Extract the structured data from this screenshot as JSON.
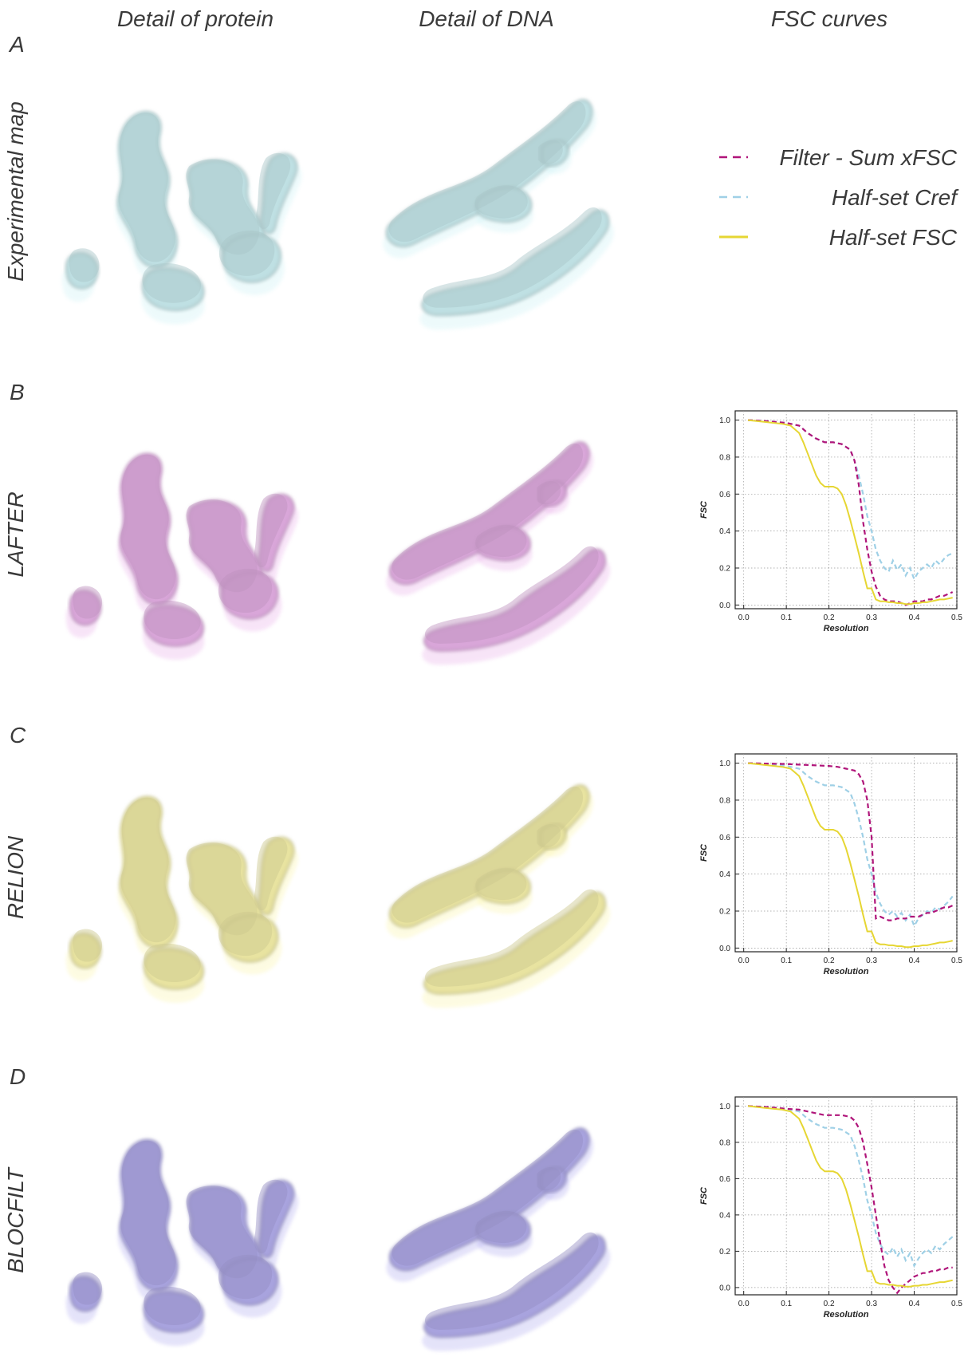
{
  "columns": [
    "Detail of protein",
    "Detail of DNA",
    "FSC curves"
  ],
  "panels": [
    {
      "letter": "A",
      "label": "Experimental map"
    },
    {
      "letter": "B",
      "label": "LAFTER"
    },
    {
      "letter": "C",
      "label": "RELION"
    },
    {
      "letter": "D",
      "label": "BLOCFILT"
    }
  ],
  "map_colors": {
    "experimental": "#bfe0e3",
    "lafter": "#d9a6d9",
    "relion": "#e8e3a0",
    "blocfilt": "#a8a3de"
  },
  "legend": [
    {
      "label": "Filter - Sum xFSC",
      "color": "#b0157a",
      "style": "dashed"
    },
    {
      "label": "Half-set Cref",
      "color": "#9fd0e6",
      "style": "dashed"
    },
    {
      "label": "Half-set FSC",
      "color": "#e6d633",
      "style": "solid"
    }
  ],
  "chart_data": [
    {
      "type": "line",
      "panel": "B",
      "xlabel": "Resolution",
      "ylabel": "FSC",
      "xlim": [
        -0.02,
        0.5
      ],
      "ylim": [
        -0.02,
        1.05
      ],
      "xticks": [
        "0.0",
        "0.1",
        "0.2",
        "0.3",
        "0.4",
        "0.5"
      ],
      "yticks": [
        "0.0",
        "0.2",
        "0.4",
        "0.6",
        "0.8",
        "1.0"
      ],
      "grid": true,
      "series": [
        {
          "color": "#9fd0e6",
          "style": "dashed",
          "x": [
            0.01,
            0.05,
            0.1,
            0.13,
            0.15,
            0.17,
            0.19,
            0.21,
            0.23,
            0.25,
            0.26,
            0.27,
            0.28,
            0.29,
            0.3,
            0.31,
            0.32,
            0.33,
            0.34,
            0.35,
            0.36,
            0.37,
            0.38,
            0.39,
            0.4,
            0.41,
            0.42,
            0.43,
            0.44,
            0.45,
            0.46,
            0.47,
            0.48,
            0.49
          ],
          "y": [
            1.0,
            0.995,
            0.985,
            0.97,
            0.93,
            0.9,
            0.88,
            0.88,
            0.87,
            0.84,
            0.78,
            0.7,
            0.6,
            0.48,
            0.4,
            0.3,
            0.24,
            0.2,
            0.18,
            0.24,
            0.19,
            0.22,
            0.16,
            0.2,
            0.14,
            0.18,
            0.2,
            0.22,
            0.2,
            0.24,
            0.22,
            0.25,
            0.27,
            0.28
          ]
        },
        {
          "color": "#b0157a",
          "style": "dashed",
          "x": [
            0.01,
            0.05,
            0.1,
            0.13,
            0.15,
            0.17,
            0.19,
            0.21,
            0.23,
            0.25,
            0.26,
            0.27,
            0.28,
            0.29,
            0.3,
            0.31,
            0.32,
            0.33,
            0.34,
            0.35,
            0.36,
            0.37,
            0.38,
            0.39,
            0.4,
            0.41,
            0.42,
            0.43,
            0.44,
            0.45,
            0.46,
            0.47,
            0.48,
            0.49
          ],
          "y": [
            1.0,
            0.995,
            0.985,
            0.97,
            0.93,
            0.9,
            0.88,
            0.88,
            0.87,
            0.84,
            0.78,
            0.65,
            0.45,
            0.3,
            0.18,
            0.1,
            0.05,
            0.03,
            0.02,
            0.02,
            0.02,
            0.01,
            0.0,
            0.01,
            0.02,
            0.02,
            0.02,
            0.03,
            0.03,
            0.04,
            0.05,
            0.05,
            0.06,
            0.07
          ]
        },
        {
          "color": "#e6d633",
          "style": "solid",
          "x": [
            0.01,
            0.05,
            0.09,
            0.11,
            0.13,
            0.14,
            0.15,
            0.16,
            0.17,
            0.18,
            0.19,
            0.21,
            0.22,
            0.23,
            0.24,
            0.25,
            0.26,
            0.27,
            0.28,
            0.29,
            0.3,
            0.31,
            0.32,
            0.33,
            0.34,
            0.35,
            0.36,
            0.37,
            0.38,
            0.39,
            0.4,
            0.41,
            0.42,
            0.43,
            0.44,
            0.45,
            0.46,
            0.47,
            0.48,
            0.49
          ],
          "y": [
            1.0,
            0.99,
            0.98,
            0.97,
            0.93,
            0.88,
            0.82,
            0.76,
            0.7,
            0.66,
            0.64,
            0.64,
            0.63,
            0.6,
            0.54,
            0.46,
            0.37,
            0.28,
            0.18,
            0.09,
            0.09,
            0.03,
            0.02,
            0.02,
            0.015,
            0.015,
            0.01,
            0.01,
            0.005,
            0.005,
            0.01,
            0.01,
            0.015,
            0.015,
            0.02,
            0.025,
            0.03,
            0.03,
            0.035,
            0.04
          ]
        }
      ]
    },
    {
      "type": "line",
      "panel": "C",
      "xlabel": "Resolution",
      "ylabel": "FSC",
      "xlim": [
        -0.02,
        0.5
      ],
      "ylim": [
        -0.02,
        1.05
      ],
      "xticks": [
        "0.0",
        "0.1",
        "0.2",
        "0.3",
        "0.4",
        "0.5"
      ],
      "yticks": [
        "0.0",
        "0.2",
        "0.4",
        "0.6",
        "0.8",
        "1.0"
      ],
      "grid": true,
      "series": [
        {
          "color": "#9fd0e6",
          "style": "dashed",
          "x": [
            0.01,
            0.05,
            0.1,
            0.13,
            0.15,
            0.17,
            0.19,
            0.21,
            0.23,
            0.25,
            0.26,
            0.27,
            0.28,
            0.29,
            0.3,
            0.31,
            0.32,
            0.33,
            0.34,
            0.35,
            0.36,
            0.37,
            0.38,
            0.39,
            0.4,
            0.41,
            0.42,
            0.43,
            0.44,
            0.45,
            0.46,
            0.47,
            0.48,
            0.49
          ],
          "y": [
            1.0,
            0.995,
            0.985,
            0.97,
            0.93,
            0.9,
            0.88,
            0.88,
            0.87,
            0.84,
            0.78,
            0.7,
            0.6,
            0.48,
            0.4,
            0.3,
            0.24,
            0.2,
            0.18,
            0.2,
            0.17,
            0.19,
            0.15,
            0.18,
            0.12,
            0.16,
            0.18,
            0.2,
            0.19,
            0.22,
            0.21,
            0.23,
            0.25,
            0.28
          ]
        },
        {
          "color": "#b0157a",
          "style": "dashed",
          "x": [
            0.01,
            0.1,
            0.15,
            0.2,
            0.22,
            0.24,
            0.26,
            0.27,
            0.28,
            0.29,
            0.3,
            0.31,
            0.32,
            0.33,
            0.34,
            0.35,
            0.36,
            0.37,
            0.38,
            0.39,
            0.4,
            0.41,
            0.42,
            0.43,
            0.44,
            0.45,
            0.46,
            0.47,
            0.48,
            0.49
          ],
          "y": [
            1.0,
            0.995,
            0.99,
            0.985,
            0.98,
            0.97,
            0.96,
            0.94,
            0.9,
            0.8,
            0.6,
            0.16,
            0.17,
            0.16,
            0.15,
            0.15,
            0.16,
            0.16,
            0.16,
            0.17,
            0.17,
            0.17,
            0.18,
            0.19,
            0.19,
            0.2,
            0.21,
            0.22,
            0.22,
            0.23
          ]
        },
        {
          "color": "#e6d633",
          "style": "solid",
          "x": [
            0.01,
            0.05,
            0.09,
            0.11,
            0.13,
            0.14,
            0.15,
            0.16,
            0.17,
            0.18,
            0.19,
            0.21,
            0.22,
            0.23,
            0.24,
            0.25,
            0.26,
            0.27,
            0.28,
            0.29,
            0.3,
            0.31,
            0.32,
            0.33,
            0.34,
            0.35,
            0.36,
            0.37,
            0.38,
            0.39,
            0.4,
            0.41,
            0.42,
            0.43,
            0.44,
            0.45,
            0.46,
            0.47,
            0.48,
            0.49
          ],
          "y": [
            1.0,
            0.99,
            0.98,
            0.97,
            0.93,
            0.88,
            0.82,
            0.76,
            0.7,
            0.66,
            0.64,
            0.64,
            0.63,
            0.6,
            0.54,
            0.46,
            0.37,
            0.28,
            0.18,
            0.09,
            0.09,
            0.03,
            0.02,
            0.02,
            0.015,
            0.015,
            0.01,
            0.01,
            0.005,
            0.005,
            0.01,
            0.01,
            0.015,
            0.015,
            0.02,
            0.025,
            0.03,
            0.03,
            0.035,
            0.04
          ]
        }
      ]
    },
    {
      "type": "line",
      "panel": "D",
      "xlabel": "Resolution",
      "ylabel": "FSC",
      "xlim": [
        -0.02,
        0.5
      ],
      "ylim": [
        -0.04,
        1.05
      ],
      "xticks": [
        "0.0",
        "0.1",
        "0.2",
        "0.3",
        "0.4",
        "0.5"
      ],
      "yticks": [
        "0.0",
        "0.2",
        "0.4",
        "0.6",
        "0.8",
        "1.0"
      ],
      "grid": true,
      "series": [
        {
          "color": "#9fd0e6",
          "style": "dashed",
          "x": [
            0.01,
            0.05,
            0.1,
            0.13,
            0.15,
            0.17,
            0.19,
            0.21,
            0.23,
            0.25,
            0.26,
            0.27,
            0.28,
            0.29,
            0.3,
            0.31,
            0.32,
            0.33,
            0.34,
            0.35,
            0.36,
            0.37,
            0.38,
            0.39,
            0.4,
            0.41,
            0.42,
            0.43,
            0.44,
            0.45,
            0.46,
            0.47,
            0.48,
            0.49
          ],
          "y": [
            1.0,
            0.995,
            0.985,
            0.97,
            0.93,
            0.9,
            0.88,
            0.88,
            0.87,
            0.84,
            0.78,
            0.7,
            0.6,
            0.48,
            0.4,
            0.3,
            0.24,
            0.2,
            0.18,
            0.22,
            0.17,
            0.21,
            0.15,
            0.19,
            0.12,
            0.16,
            0.19,
            0.21,
            0.19,
            0.23,
            0.21,
            0.24,
            0.26,
            0.28
          ]
        },
        {
          "color": "#b0157a",
          "style": "dashed",
          "x": [
            0.01,
            0.05,
            0.1,
            0.13,
            0.15,
            0.17,
            0.19,
            0.21,
            0.23,
            0.25,
            0.26,
            0.27,
            0.28,
            0.29,
            0.3,
            0.31,
            0.32,
            0.33,
            0.34,
            0.35,
            0.36,
            0.37,
            0.38,
            0.39,
            0.4,
            0.41,
            0.42,
            0.43,
            0.44,
            0.45,
            0.46,
            0.47,
            0.48,
            0.49
          ],
          "y": [
            1.0,
            0.995,
            0.985,
            0.98,
            0.97,
            0.96,
            0.95,
            0.95,
            0.95,
            0.94,
            0.92,
            0.88,
            0.8,
            0.68,
            0.55,
            0.4,
            0.25,
            0.12,
            0.04,
            0.0,
            -0.03,
            0.0,
            0.02,
            0.04,
            0.06,
            0.07,
            0.08,
            0.08,
            0.09,
            0.09,
            0.1,
            0.1,
            0.11,
            0.11
          ]
        },
        {
          "color": "#e6d633",
          "style": "solid",
          "x": [
            0.01,
            0.05,
            0.09,
            0.11,
            0.13,
            0.14,
            0.15,
            0.16,
            0.17,
            0.18,
            0.19,
            0.21,
            0.22,
            0.23,
            0.24,
            0.25,
            0.26,
            0.27,
            0.28,
            0.29,
            0.3,
            0.31,
            0.32,
            0.33,
            0.34,
            0.35,
            0.36,
            0.37,
            0.38,
            0.39,
            0.4,
            0.41,
            0.42,
            0.43,
            0.44,
            0.45,
            0.46,
            0.47,
            0.48,
            0.49
          ],
          "y": [
            1.0,
            0.99,
            0.98,
            0.97,
            0.93,
            0.88,
            0.82,
            0.76,
            0.7,
            0.66,
            0.64,
            0.64,
            0.63,
            0.6,
            0.54,
            0.46,
            0.37,
            0.28,
            0.18,
            0.09,
            0.09,
            0.03,
            0.02,
            0.02,
            0.015,
            0.015,
            0.01,
            0.01,
            0.005,
            0.005,
            0.01,
            0.01,
            0.015,
            0.015,
            0.02,
            0.025,
            0.03,
            0.03,
            0.035,
            0.04
          ]
        }
      ]
    }
  ]
}
